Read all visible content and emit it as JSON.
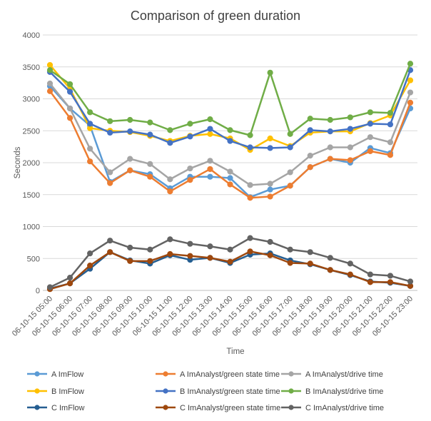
{
  "chart_data": {
    "type": "line",
    "title": "Comparison of green duration",
    "xlabel": "Time",
    "ylabel": "Seconds",
    "ylim": [
      0,
      4000
    ],
    "yticks": [
      0,
      500,
      1000,
      1500,
      2000,
      2500,
      3000,
      3500,
      4000
    ],
    "grid": "horizontal",
    "legend_position": "bottom",
    "categories": [
      "06-10-15 05:00",
      "06-10-15 06:00",
      "06-10-15 07:00",
      "06-10-15 08:00",
      "06-10-15 09:00",
      "06-10-15 10:00",
      "06-10-15 11:00",
      "06-10-15 12:00",
      "06-10-15 13:00",
      "06-10-15 14:00",
      "06-10-15 15:00",
      "06-10-15 16:00",
      "06-10-15 17:00",
      "06-10-15 18:00",
      "06-10-15 19:00",
      "06-10-15 20:00",
      "06-10-15 21:00",
      "06-10-15 22:00",
      "06-10-15 23:00"
    ],
    "series": [
      {
        "name": "A ImFlow",
        "color": "#5B9BD5",
        "values": [
          3200,
          2850,
          2580,
          1700,
          1880,
          1820,
          1600,
          1780,
          1780,
          1760,
          1460,
          1580,
          1640,
          1930,
          2060,
          2000,
          2230,
          2150,
          2850
        ]
      },
      {
        "name": "B ImFlow",
        "color": "#FFC000",
        "values": [
          3530,
          3160,
          2540,
          2500,
          2480,
          2420,
          2340,
          2420,
          2450,
          2380,
          2200,
          2380,
          2260,
          2470,
          2490,
          2490,
          2620,
          2740,
          3290
        ]
      },
      {
        "name": "C ImFlow",
        "color": "#255E91",
        "values": [
          30,
          110,
          340,
          600,
          470,
          420,
          550,
          480,
          510,
          430,
          560,
          580,
          470,
          410,
          320,
          240,
          140,
          120,
          70
        ]
      },
      {
        "name": "A ImAnalyst/green state time",
        "color": "#ED7D31",
        "values": [
          3120,
          2700,
          2020,
          1680,
          1880,
          1780,
          1550,
          1730,
          1900,
          1660,
          1450,
          1470,
          1640,
          1930,
          2060,
          2040,
          2180,
          2120,
          2940
        ]
      },
      {
        "name": "B ImAnalyst/green state time",
        "color": "#4472C4",
        "values": [
          3420,
          3110,
          2610,
          2470,
          2490,
          2440,
          2310,
          2410,
          2530,
          2340,
          2240,
          2230,
          2240,
          2510,
          2490,
          2530,
          2610,
          2600,
          3450
        ]
      },
      {
        "name": "C ImAnalyst/green state time",
        "color": "#9E480E",
        "values": [
          20,
          110,
          390,
          600,
          460,
          460,
          570,
          540,
          510,
          450,
          610,
          550,
          430,
          420,
          320,
          250,
          130,
          130,
          70
        ]
      },
      {
        "name": "A ImAnalyst/drive time",
        "color": "#A5A5A5",
        "values": [
          3240,
          2850,
          2220,
          1850,
          2060,
          1980,
          1740,
          1910,
          2030,
          1860,
          1650,
          1670,
          1850,
          2110,
          2240,
          2240,
          2400,
          2320,
          3100
        ]
      },
      {
        "name": "B ImAnalyst/drive time",
        "color": "#70AD47",
        "values": [
          3450,
          3230,
          2790,
          2650,
          2670,
          2630,
          2510,
          2610,
          2680,
          2510,
          2430,
          3410,
          2450,
          2690,
          2670,
          2710,
          2790,
          2780,
          3550
        ]
      },
      {
        "name": "C ImAnalyst/drive time",
        "color": "#636363",
        "values": [
          50,
          200,
          580,
          780,
          670,
          640,
          800,
          730,
          690,
          640,
          820,
          760,
          640,
          600,
          510,
          420,
          250,
          230,
          140
        ]
      }
    ]
  }
}
